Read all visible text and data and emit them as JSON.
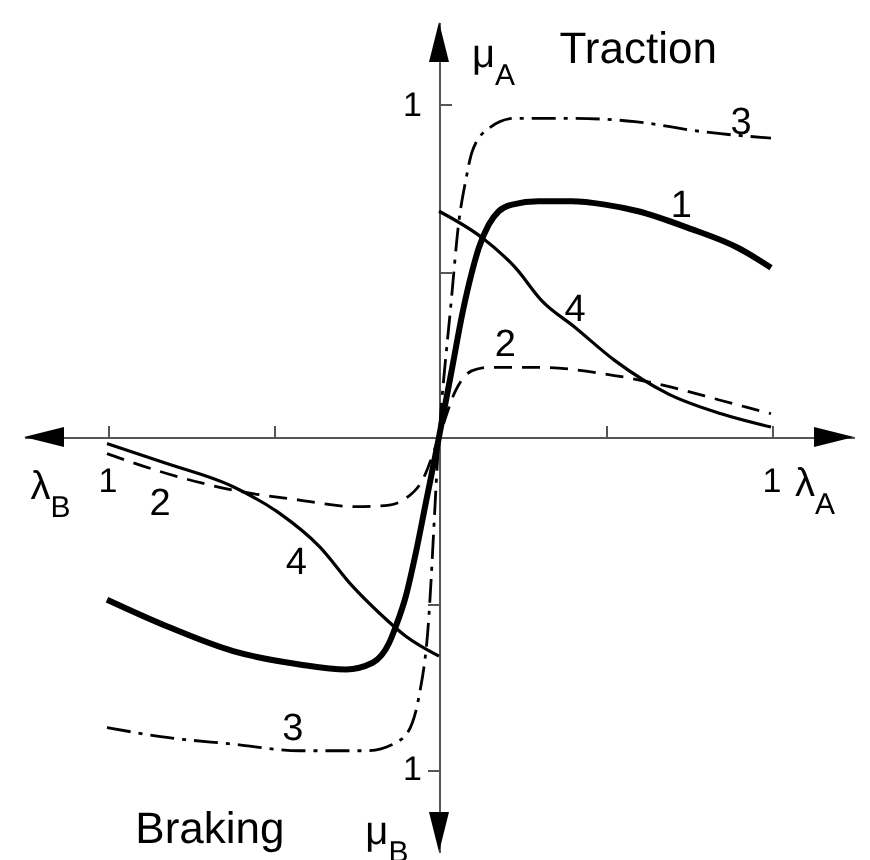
{
  "chart_data": {
    "type": "line",
    "xlabel": "λ$_{A}$",
    "ylabel": "μ$_{A}$",
    "annotations": [
      "Traction",
      "λ$_{B}$",
      "Braking",
      "μ$_{B}$"
    ],
    "xlim": [
      -1.25,
      1.25
    ],
    "ylim": [
      -1.25,
      1.25
    ],
    "xticks": [
      {
        "value": -1,
        "label": "1"
      },
      {
        "value": -0.5,
        "label": null
      },
      {
        "value": 0.5,
        "label": null
      },
      {
        "value": 1,
        "label": "1"
      }
    ],
    "yticks": [
      {
        "value": -1,
        "label": "1"
      },
      {
        "value": -0.5,
        "label": null
      },
      {
        "value": 0.5,
        "label": null
      },
      {
        "value": 1,
        "label": "1"
      }
    ],
    "series": [
      {
        "name": "1",
        "color": "#000000",
        "line_style": "solid",
        "x": [
          -1,
          -0.82,
          -0.62,
          -0.42,
          -0.28,
          -0.2,
          -0.15,
          -0.13,
          -0.1,
          -0.07,
          -0.04,
          0,
          0.04,
          0.07,
          0.1,
          0.12,
          0.15,
          0.18,
          0.22,
          0.3,
          0.4,
          0.5,
          0.6,
          0.75,
          0.9,
          1
        ],
        "values": [
          -0.49,
          -0.57,
          -0.645,
          -0.685,
          -0.7,
          -0.68,
          -0.62,
          -0.57,
          -0.48,
          -0.35,
          -0.2,
          0,
          0.21,
          0.37,
          0.5,
          0.57,
          0.64,
          0.68,
          0.7,
          0.71,
          0.71,
          0.7,
          0.68,
          0.63,
          0.57,
          0.51
        ]
      },
      {
        "name": "2",
        "color": "#000000",
        "line_style": "dashed",
        "x": [
          -1,
          -0.82,
          -0.62,
          -0.42,
          -0.25,
          -0.15,
          -0.1,
          -0.05,
          0,
          0.05,
          0.1,
          0.15,
          0.3,
          0.5,
          0.7,
          0.85,
          1
        ],
        "values": [
          -0.05,
          -0.11,
          -0.16,
          -0.19,
          -0.21,
          -0.205,
          -0.185,
          -0.13,
          0,
          0.14,
          0.2,
          0.21,
          0.21,
          0.19,
          0.15,
          0.11,
          0.07
        ]
      },
      {
        "name": "3",
        "color": "#000000",
        "line_style": "dashdot",
        "x": [
          -1,
          -0.82,
          -0.62,
          -0.42,
          -0.22,
          -0.12,
          -0.08,
          -0.06,
          -0.035,
          0,
          0.036,
          0.06,
          0.08,
          0.1,
          0.15,
          0.23,
          0.39,
          0.59,
          0.79,
          1
        ],
        "values": [
          -0.875,
          -0.905,
          -0.925,
          -0.945,
          -0.945,
          -0.915,
          -0.86,
          -0.78,
          -0.6,
          0,
          0.4,
          0.65,
          0.77,
          0.86,
          0.93,
          0.96,
          0.96,
          0.95,
          0.92,
          0.9
        ]
      },
      {
        "name": "4",
        "color": "#000000",
        "line_style": "solid",
        "x": [
          -1,
          -0.82,
          -0.62,
          -0.48,
          -0.36,
          -0.26,
          -0.18,
          -0.1,
          0,
          null,
          0,
          0.13,
          0.23,
          0.31,
          0.41,
          0.53,
          0.69,
          0.85,
          1
        ],
        "values": [
          -0.02,
          -0.08,
          -0.15,
          -0.23,
          -0.33,
          -0.45,
          -0.53,
          -0.6,
          -0.66,
          null,
          0.68,
          0.6,
          0.51,
          0.41,
          0.33,
          0.23,
          0.13,
          0.07,
          0.03
        ]
      }
    ]
  }
}
